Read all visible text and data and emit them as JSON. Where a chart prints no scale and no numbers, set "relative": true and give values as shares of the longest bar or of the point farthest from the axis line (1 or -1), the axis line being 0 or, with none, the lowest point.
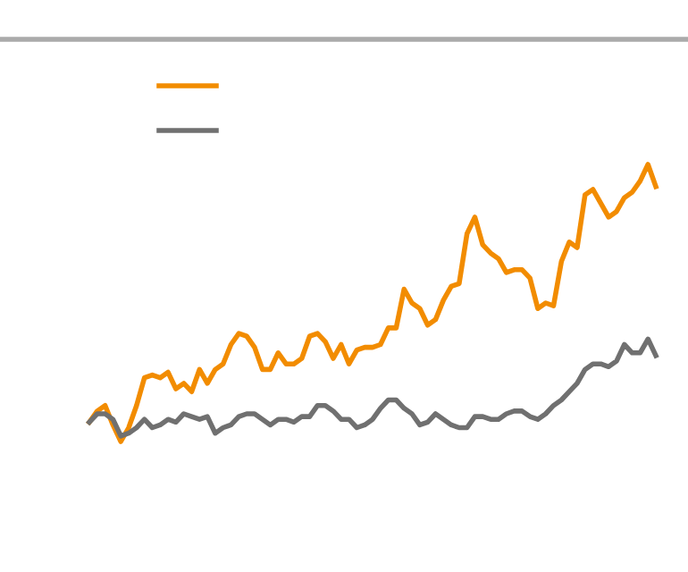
{
  "chart_data": {
    "type": "line",
    "relative": true,
    "categories": [
      null,
      null,
      null,
      null,
      null,
      null,
      null,
      null,
      null,
      null,
      null,
      null,
      null,
      null,
      null,
      null,
      null,
      null,
      null,
      null,
      null,
      null,
      null,
      null,
      null,
      null,
      null,
      null,
      null,
      null,
      null,
      null,
      null,
      null,
      null,
      null,
      null,
      null,
      null,
      null,
      null,
      null,
      null,
      null,
      null,
      null,
      null,
      null,
      null,
      null,
      null,
      null,
      null,
      null,
      null,
      null,
      null,
      null,
      null,
      null,
      null,
      null,
      null,
      null,
      null,
      null,
      null,
      null,
      null,
      null,
      null,
      null,
      null
    ],
    "series": [
      {
        "color": "#f28c00",
        "values": [
          0.07,
          0.11,
          0.13,
          0.06,
          0,
          0.05,
          0.13,
          0.23,
          0.24,
          0.23,
          0.25,
          0.19,
          0.21,
          0.18,
          0.26,
          0.21,
          0.26,
          0.28,
          0.35,
          0.39,
          0.38,
          0.34,
          0.26,
          0.26,
          0.32,
          0.28,
          0.28,
          0.3,
          0.38,
          0.39,
          0.36,
          0.3,
          0.35,
          0.28,
          0.33,
          0.34,
          0.34,
          0.35,
          0.41,
          0.41,
          0.55,
          0.5,
          0.48,
          0.42,
          0.44,
          0.51,
          0.56,
          0.57,
          0.75,
          0.81,
          0.71,
          0.68,
          0.66,
          0.61,
          0.62,
          0.62,
          0.59,
          0.48,
          0.5,
          0.49,
          0.65,
          0.72,
          0.7,
          0.89,
          0.91,
          0.86,
          0.81,
          0.83,
          0.88,
          0.9,
          0.94,
          1,
          0.92
        ]
      },
      {
        "color": "#707070",
        "values": [
          0.07,
          0.1,
          0.1,
          0.08,
          0.02,
          0.03,
          0.05,
          0.08,
          0.05,
          0.06,
          0.08,
          0.07,
          0.1,
          0.09,
          0.08,
          0.09,
          0.03,
          0.05,
          0.06,
          0.09,
          0.1,
          0.1,
          0.08,
          0.06,
          0.08,
          0.08,
          0.07,
          0.09,
          0.09,
          0.13,
          0.13,
          0.11,
          0.08,
          0.08,
          0.05,
          0.06,
          0.08,
          0.12,
          0.15,
          0.15,
          0.12,
          0.1,
          0.06,
          0.07,
          0.1,
          0.08,
          0.06,
          0.05,
          0.05,
          0.09,
          0.09,
          0.08,
          0.08,
          0.1,
          0.11,
          0.11,
          0.09,
          0.08,
          0.1,
          0.13,
          0.15,
          0.18,
          0.21,
          0.26,
          0.28,
          0.28,
          0.27,
          0.29,
          0.35,
          0.32,
          0.32,
          0.37,
          0.31
        ]
      }
    ]
  }
}
